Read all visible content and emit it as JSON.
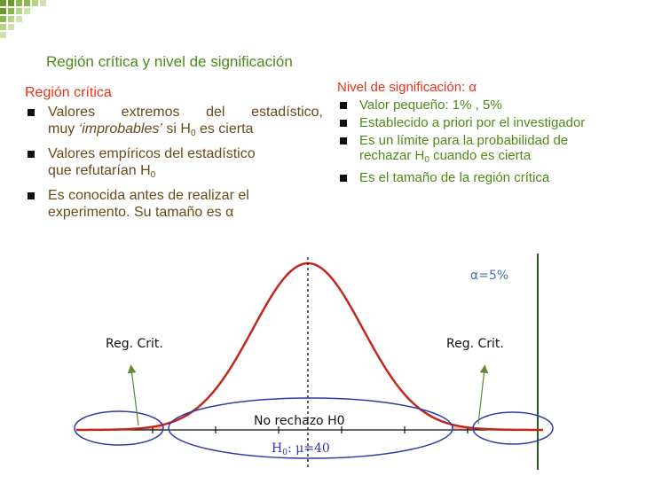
{
  "title": "Región crítica y nivel de significación",
  "left": {
    "heading": "Región crítica",
    "bullets": {
      "b1_line1": "Valores extremos del estadístico,",
      "b1_pre": "muy ",
      "b1_quoted": "‘improbables’",
      "b1_mid": " si H",
      "b1_sub": "0",
      "b1_post": " es cierta",
      "b2_line1": "Valores empíricos del estadístico",
      "b2_pre": "que refutarían H",
      "b2_sub": "0",
      "b3_line1": "Es conocida antes de realizar el",
      "b3_line2": "experimento. Su tamaño es α"
    }
  },
  "right": {
    "heading": "Nivel de significación: α",
    "bullets": {
      "b1": "Valor pequeño: 1% , 5%",
      "b2": "Establecido a priori por el investigador",
      "b3_line1": "Es un límite para la probabilidad de",
      "b3_pre": "rechazar H",
      "b3_sub": "0",
      "b3_post": " cuando es cierta",
      "b4": "Es el tamaño de la región crítica"
    }
  },
  "diagram": {
    "alpha_label": "α=5%",
    "left_region_label": "Reg. Crit.",
    "right_region_label": "Reg. Crit.",
    "center_label": "No rechazo H0",
    "h0_label_pre": "H",
    "h0_label_sub": "0",
    "h0_label_post": ":  μ=40"
  },
  "colors": {
    "title_green": "#4e8a18",
    "heading_red": "#e8311a",
    "curve_red": "#c0281c",
    "ellipse_blue": "#2d3aa8",
    "arrow_green": "#5d8a3a",
    "alpha_blue": "#4a6fb8"
  }
}
